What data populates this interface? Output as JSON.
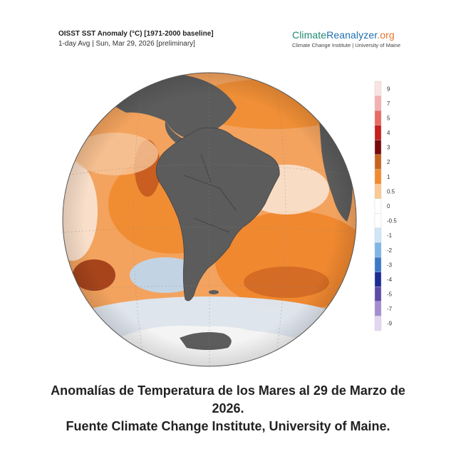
{
  "header": {
    "title": "OISST SST Anomaly (°C) [1971-2000 baseline]",
    "subtitle": "1-day Avg | Sun, Mar 29, 2026 [preliminary]",
    "brand_a": "Climate",
    "brand_b": "Reanalyzer",
    "brand_c": ".org",
    "brand_sub": "Climate Change Institute | University of Maine"
  },
  "legend": {
    "ticks": [
      "9",
      "7",
      "5",
      "4",
      "3",
      "2",
      "1",
      "0.5",
      "0",
      "-0.5",
      "-1",
      "-2",
      "-3",
      "-4",
      "-5",
      "-7",
      "-9"
    ],
    "colors": [
      "#fbe3e2",
      "#f4b0b0",
      "#e86a63",
      "#c81e1e",
      "#7a0a0a",
      "#c7631f",
      "#f28a2c",
      "#fbc992",
      "#ffffff",
      "#ffffff",
      "#cfe6f8",
      "#7fb6e8",
      "#3b79c8",
      "#1c2c93",
      "#5e4aa8",
      "#a48cd0",
      "#e3d6f0"
    ]
  },
  "colors": {
    "land": "#5c5c5c",
    "ocean_warm": "#f0882e",
    "ocean_hot": "#b9431a",
    "ocean_cool": "#a9cdf0",
    "ice": "#f5f5f5"
  },
  "caption": {
    "line1": "Anomalías de Temperatura de los Mares al 29 de Marzo de",
    "line2": "2026.",
    "line3": "Fuente Climate Change Institute, University of Maine."
  }
}
